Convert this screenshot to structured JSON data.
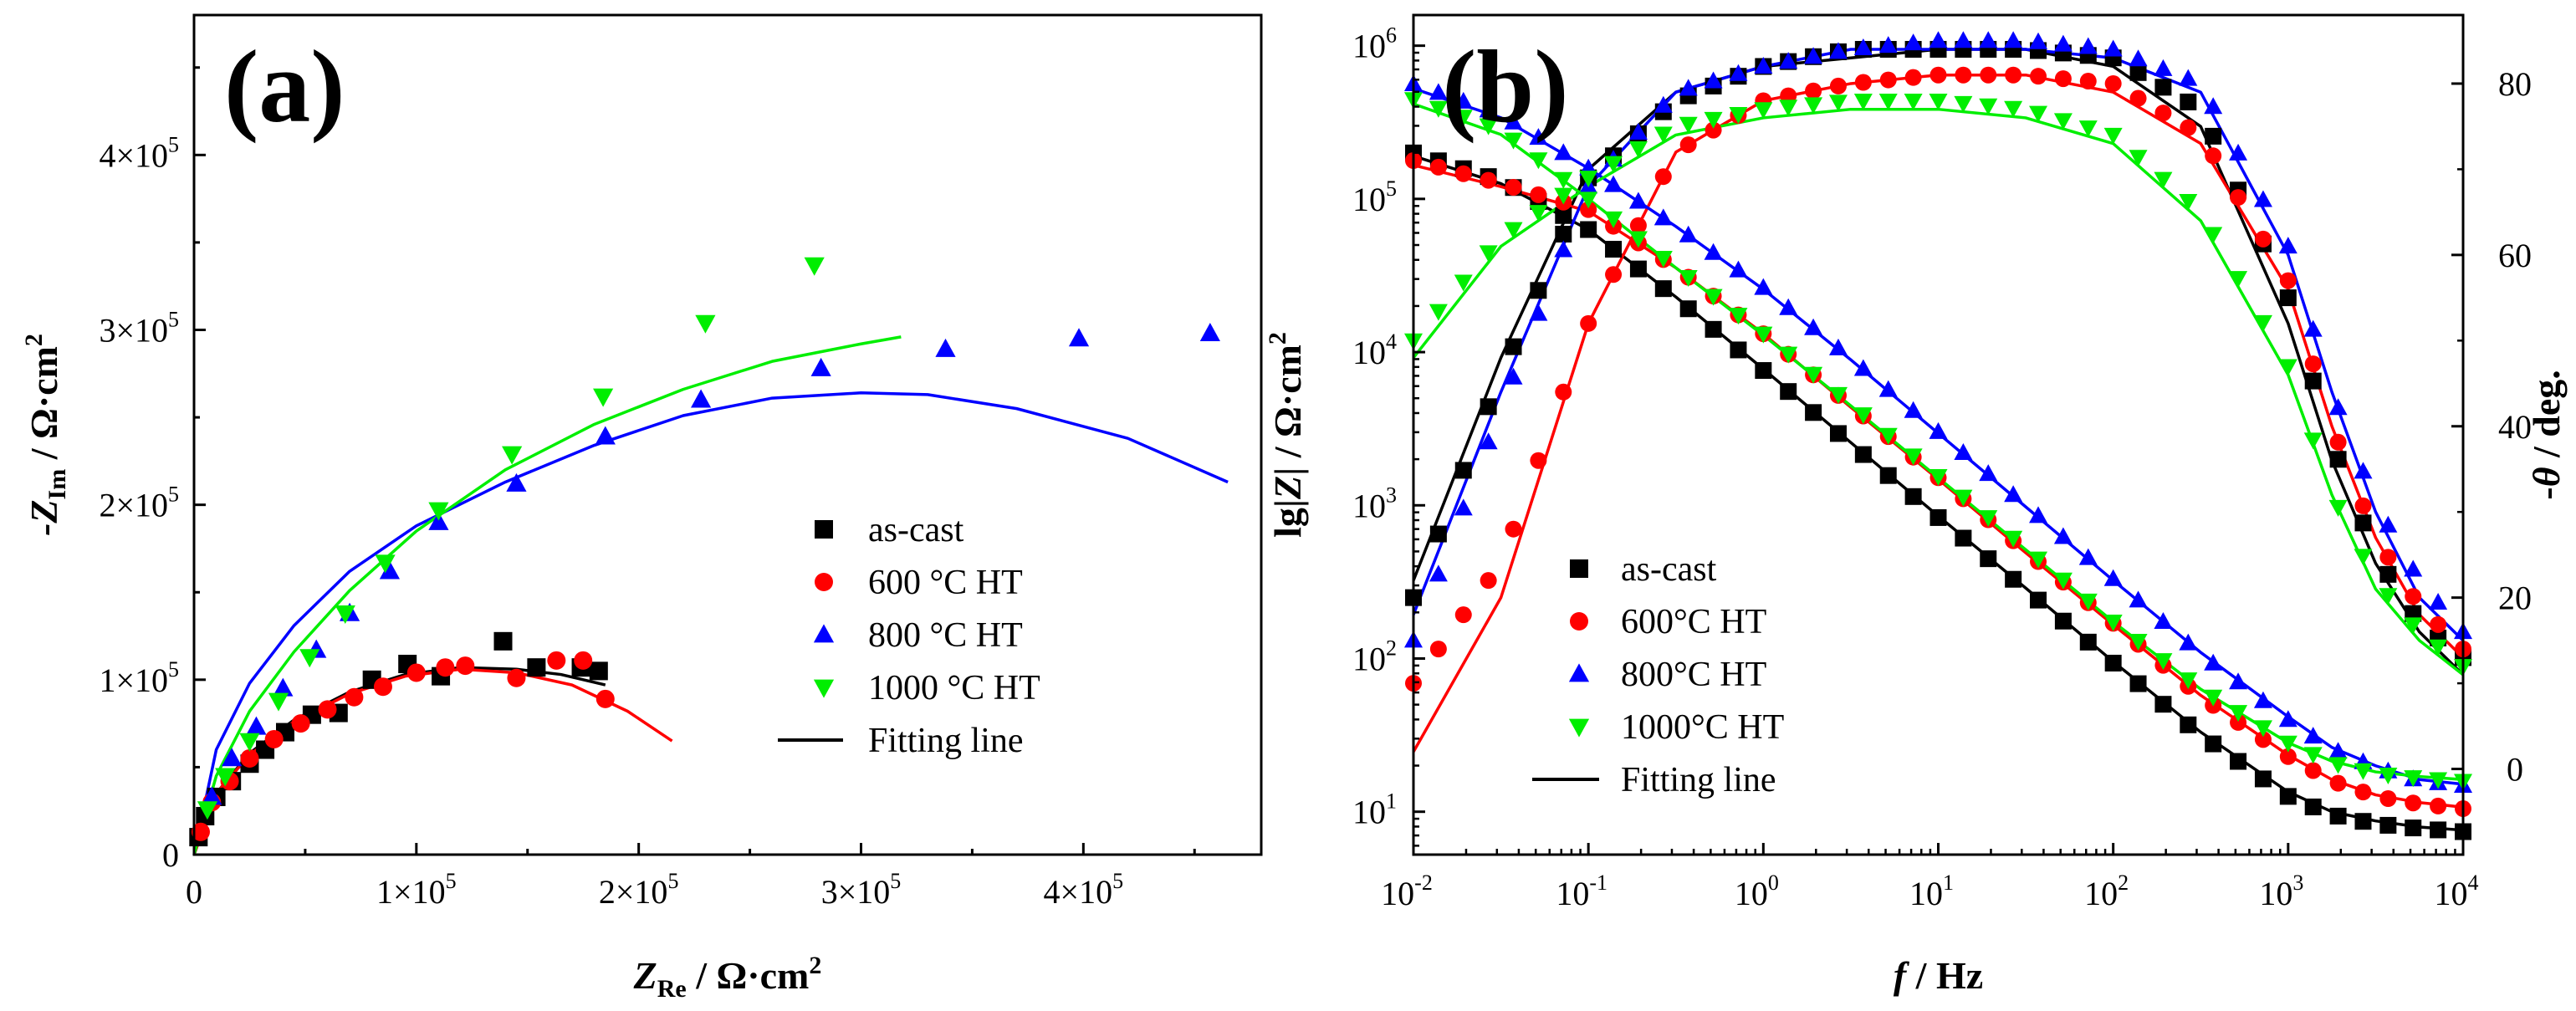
{
  "chart_data": [
    {
      "panel": "(a)",
      "type": "scatter",
      "title": "",
      "xlabel": {
        "main": "Z",
        "sub": "Re",
        "units": " / Ω·cm",
        "sup": "2"
      },
      "ylabel": {
        "main": "-Z",
        "sub": "Im",
        "units": " / Ω·cm",
        "sup": "2"
      },
      "xlim": [
        0,
        480000
      ],
      "ylim": [
        0,
        480000
      ],
      "xticks": [
        {
          "value": 0,
          "label": "0"
        },
        {
          "value": 100000,
          "label": "1×10",
          "exp": "5"
        },
        {
          "value": 200000,
          "label": "2×10",
          "exp": "5"
        },
        {
          "value": 300000,
          "label": "3×10",
          "exp": "5"
        },
        {
          "value": 400000,
          "label": "4×10",
          "exp": "5"
        }
      ],
      "yticks": [
        {
          "value": 0,
          "label": "0"
        },
        {
          "value": 100000,
          "label": "1×10",
          "exp": "5"
        },
        {
          "value": 200000,
          "label": "2×10",
          "exp": "5"
        },
        {
          "value": 300000,
          "label": "3×10",
          "exp": "5"
        },
        {
          "value": 400000,
          "label": "4×10",
          "exp": "5"
        }
      ],
      "legend": {
        "position": "bottom-right",
        "entries": [
          "as-cast",
          "600 °C HT",
          "800 °C HT",
          "1000 °C HT",
          "Fitting line"
        ]
      },
      "series": [
        {
          "name": "as-cast",
          "marker": "square",
          "color": "#000000",
          "x": [
            2000,
            5000,
            10000,
            17000,
            25000,
            32000,
            41000,
            53000,
            65000,
            80000,
            96000,
            111000,
            139000,
            154000,
            174000,
            182000
          ],
          "y": [
            10000,
            22000,
            33000,
            42000,
            52000,
            60000,
            70000,
            80000,
            81000,
            100000,
            109000,
            102000,
            122000,
            107000,
            107000,
            105000
          ]
        },
        {
          "name": "600 °C HT",
          "marker": "circle",
          "color": "#ff0000",
          "x": [
            3000,
            8000,
            16000,
            25000,
            36000,
            48000,
            60000,
            72000,
            85000,
            100000,
            113000,
            122000,
            145000,
            163000,
            175000,
            185000
          ],
          "y": [
            13000,
            30000,
            42000,
            55000,
            66000,
            75000,
            83000,
            90000,
            96000,
            104000,
            107000,
            108000,
            101000,
            111000,
            111000,
            89000
          ]
        },
        {
          "name": "800 °C HT",
          "marker": "triangle-up",
          "color": "#0000ff",
          "x": [
            8000,
            17000,
            28000,
            40000,
            55000,
            70000,
            88000,
            110000,
            145000,
            185000,
            228000,
            282000,
            338000,
            398000,
            457000
          ],
          "y": [
            33000,
            55000,
            73000,
            95000,
            117000,
            138000,
            162000,
            190000,
            212000,
            239000,
            260000,
            278000,
            289000,
            295000,
            298000
          ]
        },
        {
          "name": "1000 °C HT",
          "marker": "triangle-down",
          "color": "#00ee00",
          "x": [
            6000,
            14000,
            25000,
            38000,
            52000,
            68000,
            86000,
            110000,
            143000,
            184000,
            230000,
            279000
          ],
          "y": [
            26000,
            45000,
            65000,
            88000,
            113000,
            138000,
            167000,
            197000,
            229000,
            262000,
            304000,
            337000
          ]
        }
      ],
      "fits": [
        {
          "name": "as-cast fit",
          "color": "#000000",
          "x": [
            0,
            10000,
            25000,
            45000,
            70000,
            95000,
            120000,
            145000,
            165000,
            185000
          ],
          "y": [
            0,
            35000,
            58000,
            77000,
            93000,
            103000,
            107000,
            106000,
            103000,
            97000
          ]
        },
        {
          "name": "600 °C HT fit",
          "color": "#ff0000",
          "x": [
            0,
            10000,
            25000,
            45000,
            70000,
            95000,
            120000,
            145000,
            170000,
            195000,
            215000
          ],
          "y": [
            0,
            35000,
            57000,
            76000,
            92000,
            102000,
            106000,
            104000,
            97000,
            82000,
            65000
          ]
        },
        {
          "name": "800 °C HT fit",
          "color": "#0000ff",
          "x": [
            0,
            10000,
            25000,
            45000,
            70000,
            100000,
            140000,
            180000,
            220000,
            260000,
            300000,
            330000,
            370000,
            420000,
            465000
          ],
          "y": [
            0,
            60000,
            98000,
            131000,
            162000,
            188000,
            213000,
            234000,
            251000,
            261000,
            264000,
            263000,
            255000,
            238000,
            213000
          ]
        },
        {
          "name": "1000 °C HT fit",
          "color": "#00ee00",
          "x": [
            0,
            10000,
            25000,
            45000,
            70000,
            100000,
            140000,
            180000,
            220000,
            260000,
            300000,
            318000
          ],
          "y": [
            0,
            45000,
            82000,
            116000,
            151000,
            185000,
            220000,
            246000,
            266000,
            282000,
            292000,
            296000
          ]
        }
      ]
    },
    {
      "panel": "(b)",
      "type": "line",
      "title": "",
      "xlabel": {
        "main": "f",
        "units": " / Hz"
      },
      "ylabel_left": {
        "pre": "lg|",
        "main": "Z",
        "post": "| / Ω·cm",
        "sup": "2"
      },
      "ylabel_right": {
        "pre": "-",
        "main": "θ",
        "post": " / deg."
      },
      "xscale": "log",
      "xlim_exp": [
        -2,
        4
      ],
      "ylim_left_exp": [
        0.72,
        6.2
      ],
      "ylim_right": [
        -10,
        88
      ],
      "xticks": [
        {
          "exp": -2,
          "base": "10",
          "sup": "-2"
        },
        {
          "exp": -1,
          "base": "10",
          "sup": "-1"
        },
        {
          "exp": 0,
          "base": "10",
          "sup": "0"
        },
        {
          "exp": 1,
          "base": "10",
          "sup": "1"
        },
        {
          "exp": 2,
          "base": "10",
          "sup": "2"
        },
        {
          "exp": 3,
          "base": "10",
          "sup": "3"
        },
        {
          "exp": 4,
          "base": "10",
          "sup": "4"
        }
      ],
      "yticks_left": [
        {
          "exp": 1,
          "base": "10",
          "sup": "1"
        },
        {
          "exp": 2,
          "base": "10",
          "sup": "2"
        },
        {
          "exp": 3,
          "base": "10",
          "sup": "3"
        },
        {
          "exp": 4,
          "base": "10",
          "sup": "4"
        },
        {
          "exp": 5,
          "base": "10",
          "sup": "5"
        },
        {
          "exp": 6,
          "base": "10",
          "sup": "6"
        }
      ],
      "yticks_right": [
        0,
        20,
        40,
        60,
        80
      ],
      "legend": {
        "position": "bottom-left",
        "entries": [
          "as-cast",
          "600°C HT",
          "800°C HT",
          "1000°C HT",
          "Fitting line"
        ]
      },
      "log_f": [
        -2,
        -1.5,
        -1,
        -0.5,
        0,
        0.5,
        1,
        1.5,
        2,
        2.5,
        3,
        3.25,
        3.5,
        3.75,
        4
      ],
      "series": [
        {
          "name": "as-cast",
          "marker": "square",
          "color": "#000000",
          "lgZ": [
            5.3,
            5.12,
            4.8,
            4.35,
            3.88,
            3.4,
            2.92,
            2.45,
            1.97,
            1.5,
            1.1,
            0.98,
            0.92,
            0.89,
            0.87
          ],
          "phase": [
            20,
            46,
            69,
            78,
            82,
            84,
            84,
            84,
            83,
            77,
            55,
            38,
            25,
            17,
            13
          ]
        },
        {
          "name": "600°C HT",
          "marker": "circle",
          "color": "#ff0000",
          "lgZ": [
            5.25,
            5.1,
            4.93,
            4.55,
            4.12,
            3.65,
            3.18,
            2.7,
            2.23,
            1.75,
            1.36,
            1.2,
            1.1,
            1.05,
            1.02
          ],
          "phase": [
            10,
            24,
            52,
            72,
            78,
            80,
            81,
            81,
            80,
            74,
            57,
            40,
            27,
            19,
            14
          ]
        },
        {
          "name": "800°C HT",
          "marker": "triangle-up",
          "color": "#0000ff",
          "lgZ": [
            5.75,
            5.55,
            5.2,
            4.82,
            4.42,
            3.96,
            3.48,
            3.0,
            2.52,
            2.03,
            1.6,
            1.41,
            1.29,
            1.2,
            1.17
          ],
          "phase": [
            15,
            42,
            68,
            79,
            82,
            84,
            85,
            85,
            84,
            80,
            61,
            44,
            31,
            22,
            16
          ]
        },
        {
          "name": "1000°C HT",
          "marker": "triangle-down",
          "color": "#00ee00",
          "lgZ": [
            5.65,
            5.45,
            5.0,
            4.55,
            4.12,
            3.66,
            3.19,
            2.72,
            2.24,
            1.8,
            1.45,
            1.32,
            1.25,
            1.22,
            1.2
          ],
          "phase": [
            50,
            62,
            69,
            75,
            77,
            78,
            78,
            77,
            74,
            65,
            47,
            32,
            22,
            16,
            12
          ]
        }
      ],
      "fits": [
        {
          "name": "as-cast fit",
          "color": "#000000",
          "lgZ": [
            5.28,
            5.1,
            4.8,
            4.36,
            3.89,
            3.41,
            2.93,
            2.46,
            1.98,
            1.52,
            1.13,
            1.0,
            0.94,
            0.9,
            0.88
          ],
          "phase": [
            22,
            48,
            70,
            79,
            82,
            83,
            84,
            84,
            82,
            75,
            52,
            36,
            24,
            16,
            11
          ]
        },
        {
          "name": "600°C HT fit",
          "color": "#ff0000",
          "lgZ": [
            5.22,
            5.08,
            4.92,
            4.55,
            4.12,
            3.64,
            3.17,
            2.69,
            2.22,
            1.76,
            1.37,
            1.21,
            1.11,
            1.06,
            1.03
          ],
          "phase": [
            2,
            20,
            52,
            72,
            78,
            80,
            81,
            81,
            79,
            73,
            56,
            40,
            27,
            18,
            13
          ]
        },
        {
          "name": "800°C HT fit",
          "color": "#0000ff",
          "lgZ": [
            5.72,
            5.53,
            5.2,
            4.82,
            4.41,
            3.95,
            3.47,
            2.99,
            2.51,
            2.04,
            1.62,
            1.42,
            1.3,
            1.21,
            1.18
          ],
          "phase": [
            18,
            44,
            68,
            79,
            82,
            84,
            84,
            84,
            83,
            79,
            60,
            44,
            30,
            20,
            15
          ]
        },
        {
          "name": "1000°C HT fit",
          "color": "#00ee00",
          "lgZ": [
            5.62,
            5.42,
            5.0,
            4.55,
            4.11,
            3.65,
            3.18,
            2.71,
            2.24,
            1.8,
            1.45,
            1.33,
            1.26,
            1.23,
            1.21
          ],
          "phase": [
            48,
            61,
            68,
            74,
            76,
            77,
            77,
            76,
            73,
            64,
            46,
            32,
            21,
            15,
            11
          ]
        }
      ]
    }
  ]
}
